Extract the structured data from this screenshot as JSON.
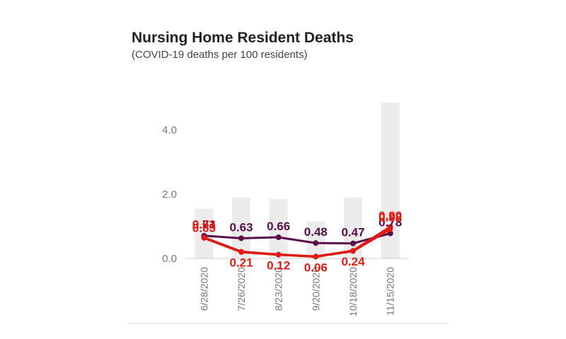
{
  "header": {
    "title": "Nursing Home Resident Deaths",
    "subtitle": "(COVID-19 deaths per 100 residents)"
  },
  "colors": {
    "bars": "#ececec",
    "series_dark": "#5a0f4b",
    "series_red": "#e01b14",
    "axis_text": "#777777"
  },
  "chart_data": {
    "type": "bar",
    "categories": [
      "6/28/2020",
      "7/26/2020",
      "8/23/2020",
      "9/20/2020",
      "10/18/2020",
      "11/15/2020"
    ],
    "y_tick_labels": [
      "0.0",
      "2.0",
      "4.0"
    ],
    "y_ticks": [
      0,
      2,
      4
    ],
    "ylim": [
      0,
      4.8
    ],
    "grid": false,
    "bars": [
      1.55,
      1.9,
      1.85,
      1.15,
      1.9,
      4.85
    ],
    "series": [
      {
        "values": [
          0.71,
          0.63,
          0.66,
          0.48,
          0.47,
          0.78
        ],
        "labels": [
          "0.71",
          "0.63",
          "0.66",
          "0.48",
          "0.47",
          "0.78"
        ]
      },
      {
        "values": [
          0.65,
          0.21,
          0.12,
          0.06,
          0.24,
          0.98
        ],
        "labels": [
          "0.65",
          "0.21",
          "0.12",
          "0.06",
          "0.24",
          "0.98"
        ]
      },
      {
        "values": [
          0.63,
          0.19,
          0.11,
          0.05,
          0.22,
          0.9
        ],
        "labels": [
          "0.63",
          "",
          "",
          "",
          "",
          "0.90"
        ]
      }
    ]
  }
}
